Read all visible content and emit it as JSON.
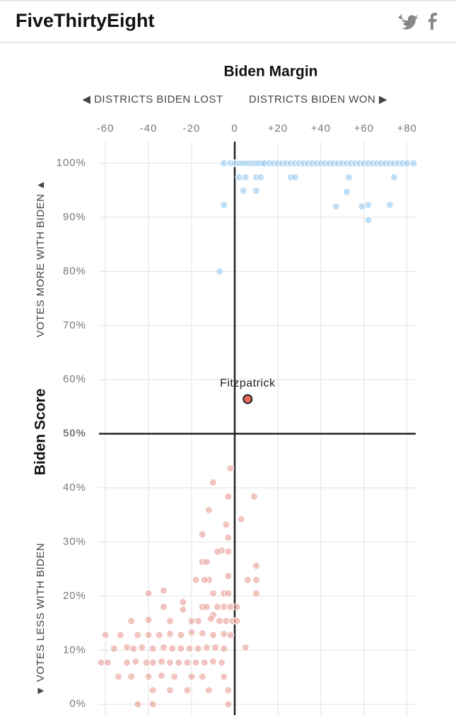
{
  "header": {
    "title": "FiveThirtyEight"
  },
  "chart_data": {
    "type": "scatter",
    "title": "Biden Margin",
    "ylabel": "Biden Score",
    "annotations": [
      "◀ DISTRICTS BIDEN LOST",
      "DISTRICTS BIDEN WON ▶",
      "VOTES MORE WITH BIDEN ▲",
      "▼ VOTES LESS WITH BIDEN"
    ],
    "xlim": [
      -63,
      84
    ],
    "ylim": [
      -2,
      104
    ],
    "xticks": [
      -60,
      -40,
      -20,
      0,
      {
        "value": 20,
        "label": "+20"
      },
      {
        "value": 40,
        "label": "+40"
      },
      {
        "value": 60,
        "label": "+60"
      },
      {
        "value": 80,
        "label": "+80"
      }
    ],
    "yticks": [
      {
        "value": 0,
        "label": "0%"
      },
      {
        "value": 10,
        "label": "10%"
      },
      {
        "value": 20,
        "label": "20%"
      },
      {
        "value": 30,
        "label": "30%"
      },
      {
        "value": 40,
        "label": "40%"
      },
      {
        "value": 50,
        "label": "50%"
      },
      {
        "value": 60,
        "label": "60%"
      },
      {
        "value": 70,
        "label": "70%"
      },
      {
        "value": 80,
        "label": "80%"
      },
      {
        "value": 90,
        "label": "90%"
      },
      {
        "value": 100,
        "label": "100%"
      }
    ],
    "grid": true,
    "axis_cross": [
      0,
      50
    ],
    "series": [
      {
        "color": "#8ec5ef",
        "x": [
          -5,
          -2,
          0,
          1,
          2,
          3,
          4,
          5,
          6,
          7,
          8,
          9,
          10,
          11,
          12,
          13,
          14,
          16,
          18,
          20,
          22,
          24,
          26,
          28,
          30,
          32,
          34,
          36,
          38,
          40,
          42,
          44,
          46,
          48,
          50,
          52,
          54,
          56,
          58,
          60,
          62,
          64,
          66,
          68,
          70,
          72,
          74,
          76,
          78,
          80,
          83,
          2,
          5,
          10,
          12,
          26,
          28,
          53,
          74,
          4,
          10,
          52,
          -5,
          47,
          59,
          62,
          72,
          62,
          -7
        ],
        "values": [
          100,
          100,
          100,
          100,
          100,
          100,
          100,
          100,
          100,
          100,
          100,
          100,
          100,
          100,
          100,
          100,
          100,
          100,
          100,
          100,
          100,
          100,
          100,
          100,
          100,
          100,
          100,
          100,
          100,
          100,
          100,
          100,
          100,
          100,
          100,
          100,
          100,
          100,
          100,
          100,
          100,
          100,
          100,
          100,
          100,
          100,
          100,
          100,
          100,
          100,
          100,
          97.4,
          97.4,
          97.4,
          97.4,
          97.4,
          97.4,
          97.4,
          97.4,
          94.9,
          94.9,
          94.7,
          92.3,
          92,
          92,
          92.3,
          92.3,
          89.5,
          80
        ]
      },
      {
        "color": "#e8938a",
        "x": [
          -2,
          -10,
          9,
          -3,
          3,
          -12,
          -4,
          -3,
          -6,
          -8,
          -3,
          -15,
          -15,
          -13,
          -3,
          -18,
          -12,
          -14,
          10,
          6,
          10,
          -40,
          -33,
          -10,
          -5,
          -3,
          10,
          -24,
          -15,
          -13,
          -8,
          -5,
          -2,
          1,
          -33,
          -24,
          -10,
          -30,
          -40,
          -48,
          -20,
          -17,
          -11,
          -7,
          -4,
          -1,
          1,
          -60,
          -53,
          -45,
          -40,
          -35,
          -30,
          -25,
          -20,
          -15,
          -10,
          -5,
          -2,
          -56,
          -50,
          -47,
          -43,
          -38,
          -33,
          -29,
          -25,
          -21,
          -17,
          -13,
          -9,
          -5,
          5,
          -62,
          -59,
          -50,
          -46,
          -41,
          -38,
          -34,
          -30,
          -26,
          -22,
          -18,
          -14,
          -10,
          -6,
          -54,
          -48,
          -40,
          -34,
          -28,
          -20,
          -15,
          -5,
          -38,
          -30,
          -22,
          -12,
          -3,
          -45,
          -38,
          -3
        ],
        "values": [
          43.6,
          41,
          38.4,
          38.4,
          34.2,
          35.9,
          33.2,
          30.8,
          28.4,
          28.2,
          28.2,
          31.4,
          26.3,
          26.3,
          23.7,
          23,
          23,
          23,
          25.6,
          23,
          23,
          20.5,
          21,
          20.5,
          20.5,
          20.5,
          20.5,
          18.9,
          18,
          18,
          18,
          18,
          18,
          18,
          18,
          17.5,
          16.5,
          15.4,
          15.6,
          15.4,
          15.4,
          15.4,
          15.8,
          15.4,
          15.4,
          15.4,
          15.4,
          12.8,
          12.8,
          12.8,
          12.8,
          12.8,
          13,
          12.8,
          13.3,
          13.1,
          12.8,
          13,
          12.8,
          10.3,
          10.5,
          10.3,
          10.5,
          10.3,
          10.5,
          10.3,
          10.3,
          10.3,
          10.3,
          10.5,
          10.5,
          10.3,
          10.5,
          7.7,
          7.7,
          7.7,
          7.9,
          7.7,
          7.7,
          7.9,
          7.7,
          7.7,
          7.7,
          7.7,
          7.7,
          7.9,
          7.7,
          5.1,
          5.1,
          5.1,
          5.3,
          5.1,
          5.1,
          5.1,
          5.1,
          2.6,
          2.6,
          2.6,
          2.6,
          2.6,
          0,
          0,
          0
        ]
      },
      {
        "name": "Fitzpatrick",
        "color": "#e8695a",
        "x": [
          6
        ],
        "values": [
          56.4
        ]
      }
    ]
  }
}
